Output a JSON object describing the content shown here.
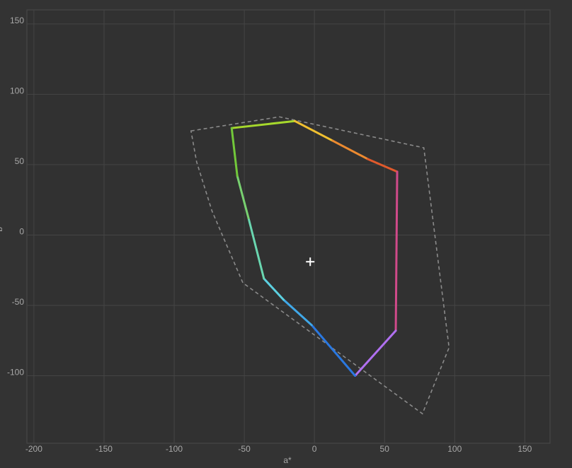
{
  "chart_data": {
    "type": "gamut",
    "x_label": "a*",
    "y_label": "b*",
    "xlim": [
      -205,
      168
    ],
    "ylim": [
      -148,
      160
    ],
    "xticks": [
      -200,
      -150,
      -100,
      -50,
      0,
      50,
      100,
      150
    ],
    "yticks": [
      -100,
      -50,
      0,
      50,
      100,
      150
    ],
    "grid": true,
    "gamut": {
      "a": [
        -59,
        -14,
        13,
        38,
        59,
        58,
        29,
        -2,
        -22,
        -36,
        -47,
        -55
      ],
      "b": [
        76,
        81,
        67,
        54,
        45,
        -68,
        -100,
        -64,
        -46,
        -31,
        12,
        42
      ],
      "colors": [
        "#a6d82c",
        "#f0c030",
        "#ec8a30",
        "#e05a2c",
        "#d04a8a",
        "#b070f0",
        "#2a78e0",
        "#40a8e8",
        "#5cd0e0",
        "#6ad6b0",
        "#78d070",
        "#72c83a"
      ]
    },
    "reference": {
      "a": [
        -88,
        -25,
        78,
        96,
        77,
        -51,
        -73,
        -84
      ],
      "b": [
        74,
        84,
        62,
        -80,
        -127,
        -34,
        17,
        52
      ],
      "color": "#8a8a8a"
    },
    "white_point": {
      "a": -3,
      "b": -19,
      "color": "#ffffff"
    }
  }
}
